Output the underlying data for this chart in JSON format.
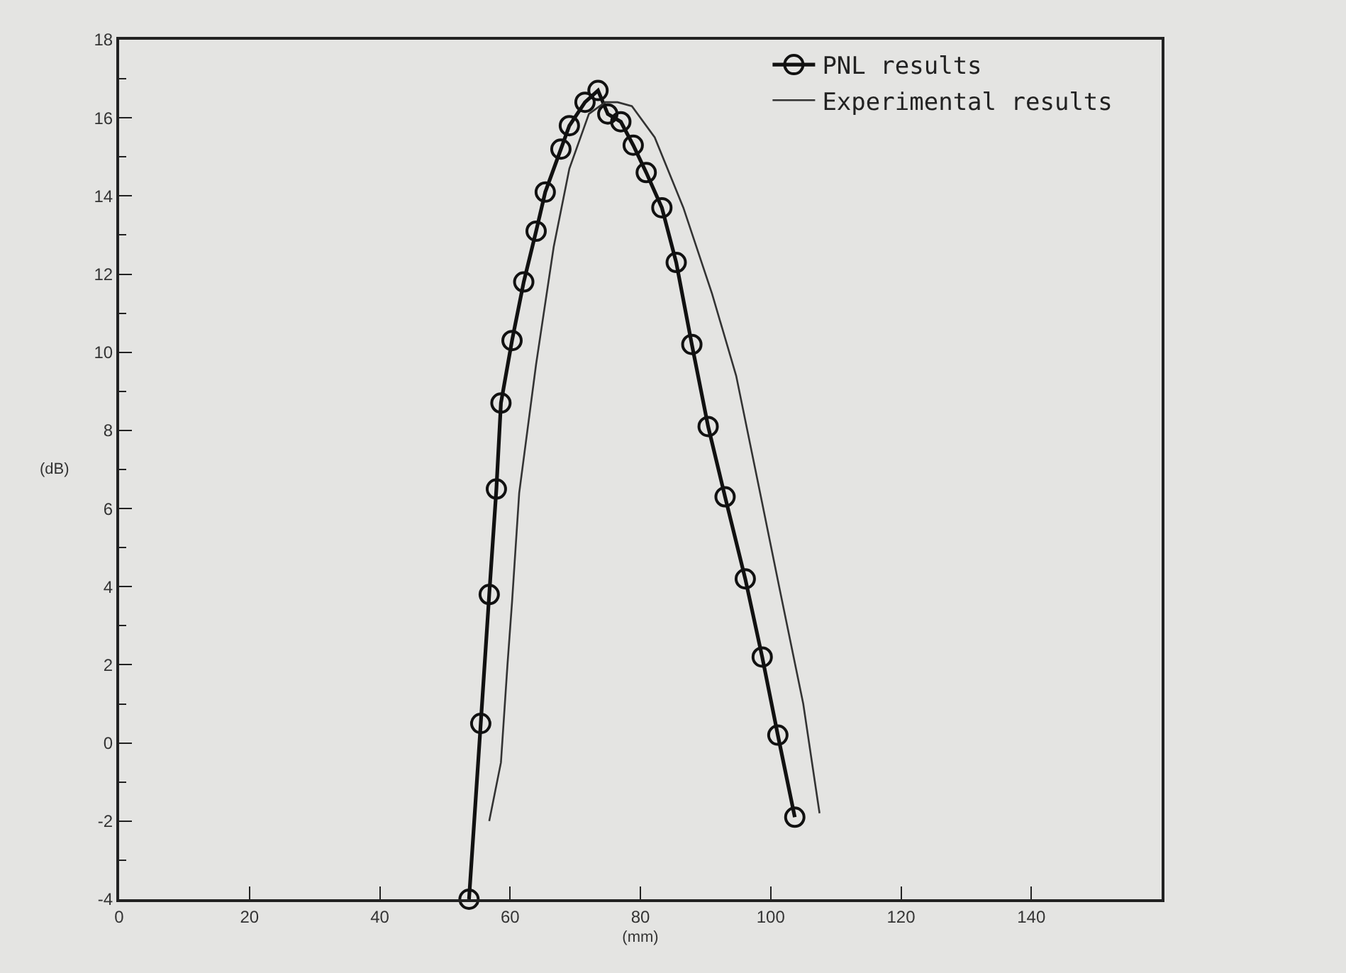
{
  "chart_data": {
    "type": "line",
    "xlabel": "(mm)",
    "ylabel": "(dB)",
    "xlim": [
      0,
      160
    ],
    "xticks": [
      0,
      20,
      40,
      60,
      80,
      100,
      120,
      140
    ],
    "ylim": [
      -4,
      18
    ],
    "yticks": [
      -4,
      -2,
      0,
      2,
      4,
      6,
      8,
      10,
      12,
      14,
      16,
      18
    ],
    "grid": false,
    "legend": "top right",
    "series": [
      {
        "name": "PNL results",
        "color": "#111111",
        "marker": "circle",
        "line_style": "solid",
        "x": [
          53.7,
          55.5,
          56.8,
          57.9,
          58.6,
          60.3,
          62.1,
          64.0,
          65.4,
          67.8,
          69.1,
          71.5,
          73.5,
          75.0,
          77.0,
          78.9,
          80.9,
          83.3,
          85.5,
          87.9,
          90.4,
          93.0,
          96.1,
          98.7,
          101.1,
          103.7
        ],
        "values": [
          -4,
          0.5,
          3.8,
          6.5,
          8.7,
          10.3,
          11.8,
          13.1,
          14.1,
          15.2,
          15.8,
          16.4,
          16.7,
          16.1,
          15.9,
          15.3,
          14.6,
          13.7,
          12.3,
          10.2,
          8.1,
          6.3,
          4.2,
          2.2,
          0.2,
          -1.9
        ]
      },
      {
        "name": "Experimental results",
        "color": "#333333",
        "marker": "none",
        "line_style": "solid",
        "x": [
          56.8,
          58.6,
          59.6,
          60.3,
          61.4,
          64.0,
          66.7,
          69.1,
          72.1,
          74.6,
          76.5,
          78.7,
          82.2,
          86.6,
          91.0,
          94.7,
          98.5,
          101.3,
          105.0,
          107.5
        ],
        "values": [
          -2.0,
          -0.5,
          2.0,
          3.6,
          6.4,
          9.7,
          12.7,
          14.7,
          16.1,
          16.4,
          16.4,
          16.3,
          15.5,
          13.7,
          11.5,
          9.4,
          6.3,
          4.0,
          1.0,
          -1.8
        ]
      }
    ]
  }
}
